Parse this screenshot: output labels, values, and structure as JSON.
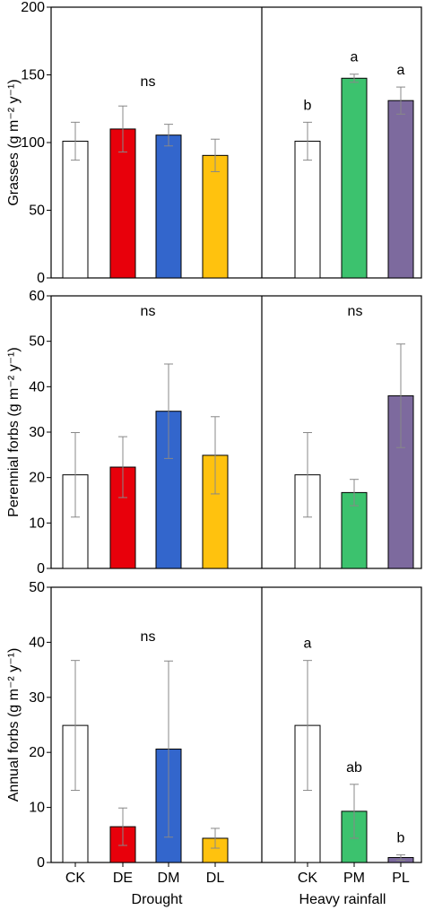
{
  "chart_data": [
    {
      "type": "bar",
      "ylabel": "Grasses (g m⁻² y⁻¹)",
      "ylim": [
        0,
        200
      ],
      "yticks": [
        0,
        50,
        100,
        150,
        200
      ],
      "grid": false,
      "groups": [
        {
          "name": "Drought",
          "categories": [
            "CK",
            "DE",
            "DM",
            "DL"
          ],
          "values": [
            101,
            110,
            105.5,
            90.5
          ],
          "errors": [
            14,
            17,
            8,
            12
          ],
          "colors": [
            "#ffffff",
            "#e8000b",
            "#3366cc",
            "#ffc20e"
          ],
          "significance": "ns",
          "letters": []
        },
        {
          "name": "Heavy rainfall",
          "categories": [
            "CK",
            "PM",
            "PL"
          ],
          "values": [
            101,
            147.5,
            131
          ],
          "errors": [
            14,
            3,
            10
          ],
          "colors": [
            "#ffffff",
            "#3cc26e",
            "#7d6a9e"
          ],
          "significance": "",
          "letters": [
            "b",
            "a",
            "a"
          ]
        }
      ]
    },
    {
      "type": "bar",
      "ylabel": "Perennial forbs (g m⁻² y⁻¹)",
      "ylim": [
        0,
        60
      ],
      "yticks": [
        0,
        10,
        20,
        30,
        40,
        50,
        60
      ],
      "grid": false,
      "groups": [
        {
          "name": "Drought",
          "categories": [
            "CK",
            "DE",
            "DM",
            "DL"
          ],
          "values": [
            20.6,
            22.3,
            34.6,
            24.9
          ],
          "errors": [
            9.3,
            6.7,
            10.4,
            8.5
          ],
          "colors": [
            "#ffffff",
            "#e8000b",
            "#3366cc",
            "#ffc20e"
          ],
          "significance": "ns",
          "letters": []
        },
        {
          "name": "Heavy rainfall",
          "categories": [
            "CK",
            "PM",
            "PL"
          ],
          "values": [
            20.6,
            16.7,
            38
          ],
          "errors": [
            9.3,
            2.9,
            11.4
          ],
          "colors": [
            "#ffffff",
            "#3cc26e",
            "#7d6a9e"
          ],
          "significance": "ns",
          "letters": []
        }
      ]
    },
    {
      "type": "bar",
      "ylabel": "Annual forbs (g m⁻² y⁻¹)",
      "ylim": [
        0,
        50
      ],
      "yticks": [
        0,
        10,
        20,
        30,
        40,
        50
      ],
      "grid": false,
      "groups": [
        {
          "name": "Drought",
          "categories": [
            "CK",
            "DE",
            "DM",
            "DL"
          ],
          "values": [
            24.9,
            6.5,
            20.6,
            4.4
          ],
          "errors": [
            11.8,
            3.4,
            16,
            1.8
          ],
          "colors": [
            "#ffffff",
            "#e8000b",
            "#3366cc",
            "#ffc20e"
          ],
          "significance": "ns",
          "letters": []
        },
        {
          "name": "Heavy rainfall",
          "categories": [
            "CK",
            "PM",
            "PL"
          ],
          "values": [
            24.9,
            9.3,
            0.9
          ],
          "errors": [
            11.8,
            4.9,
            0.5
          ],
          "colors": [
            "#ffffff",
            "#3cc26e",
            "#7d6a9e"
          ],
          "significance": "",
          "letters": [
            "a",
            "ab",
            "b"
          ]
        }
      ]
    }
  ]
}
